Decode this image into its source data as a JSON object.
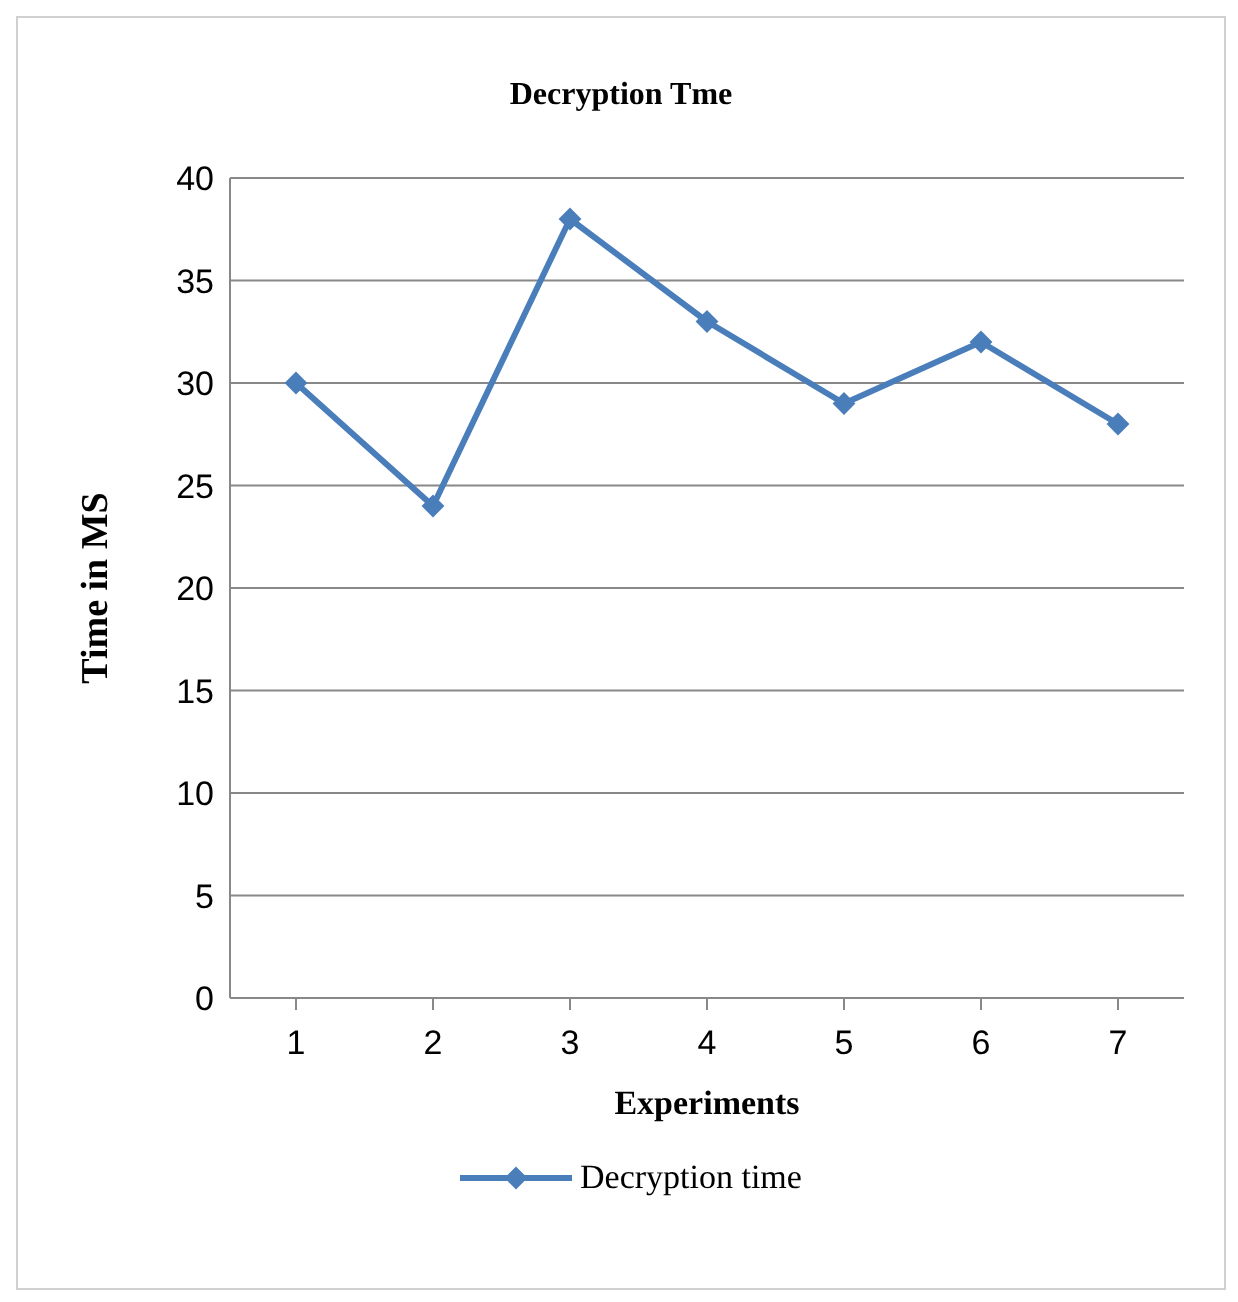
{
  "chart_data": {
    "type": "line",
    "title": "Decryption Tme",
    "xlabel": "Experiments",
    "ylabel": "Time in MS",
    "categories": [
      "1",
      "2",
      "3",
      "4",
      "5",
      "6",
      "7"
    ],
    "series": [
      {
        "name": "Decryption time",
        "color": "#4a7ebb",
        "values": [
          30,
          24,
          38,
          33,
          29,
          32,
          28
        ]
      }
    ],
    "ylim": [
      0,
      40
    ],
    "yticks": [
      0,
      5,
      10,
      15,
      20,
      25,
      30,
      35,
      40
    ],
    "grid": "y",
    "legend": "bottom",
    "marker": "diamond",
    "line_style": "solid"
  }
}
